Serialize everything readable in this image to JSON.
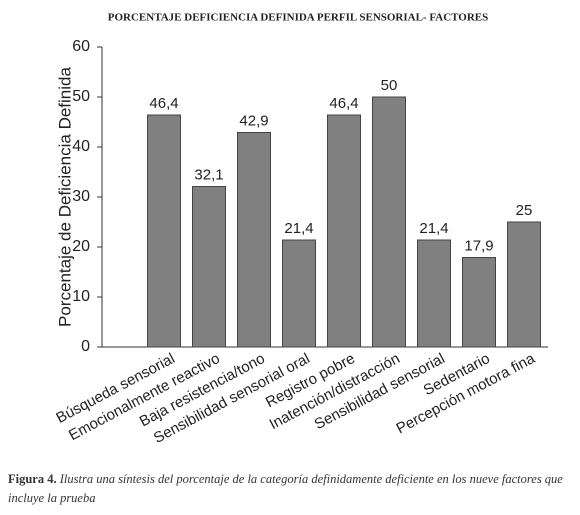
{
  "chart_data": {
    "type": "bar",
    "title": "PORCENTAJE DEFICIENCIA DEFINIDA PERFIL SENSORIAL- FACTORES",
    "y_label": "Porcentaje de Deficiencia Definida",
    "categories": [
      "Búsqueda sensorial",
      "Emocionalmente reactivo",
      "Baja resistencia/tono",
      "Sensibilidad sensorial oral",
      "Registro pobre",
      "Inatención/distracción",
      "Sensibilidad sensorial",
      "Sedentario",
      "Percepción motora fina"
    ],
    "values": [
      46.4,
      32.1,
      42.9,
      21.4,
      46.4,
      50,
      21.4,
      17.9,
      25
    ],
    "value_labels": [
      "46,4",
      "32,1",
      "42,9",
      "21,4",
      "46,4",
      "50",
      "21,4",
      "17,9",
      "25"
    ],
    "color": "#808080",
    "ylim": [
      0,
      60
    ],
    "yticks": [
      0,
      10,
      20,
      30,
      40,
      50,
      60
    ],
    "grid": false
  },
  "caption": {
    "label": "Figura 4.",
    "text": "Ilustra una síntesis del porcentaje de la categoría definidamente deficiente en los nueve factores que incluye la prueba"
  }
}
